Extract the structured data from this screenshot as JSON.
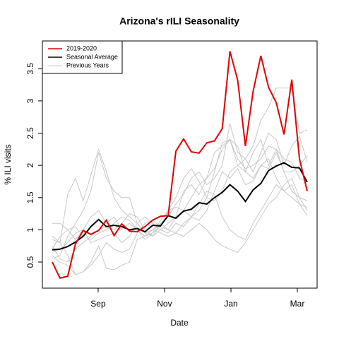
{
  "chart_data": {
    "type": "line",
    "title": "Arizona's rILI Seasonality",
    "x_label": "Date",
    "y_label": "% ILI visits",
    "x": [
      1,
      2,
      3,
      4,
      5,
      6,
      7,
      8,
      9,
      10,
      11,
      12,
      13,
      14,
      15,
      16,
      17,
      18,
      19,
      20,
      21,
      22,
      23,
      24,
      25,
      26,
      27,
      28,
      29,
      30,
      31,
      32,
      33,
      34
    ],
    "xlim": [
      -0.28,
      35.28
    ],
    "xticks": [
      {
        "value": 6.94,
        "label": "Sep"
      },
      {
        "value": 15.53,
        "label": "Nov"
      },
      {
        "value": 24.13,
        "label": "Jan"
      },
      {
        "value": 32.72,
        "label": "Mar"
      }
    ],
    "ylim": [
      0.095,
      3.93
    ],
    "yticks": [
      0.5,
      1,
      1.5,
      2,
      2.5,
      3,
      3.5
    ],
    "legend": "top-left",
    "series": [
      {
        "name": "2019-2020",
        "color": "#e00000",
        "values": [
          0.5,
          0.25,
          0.28,
          0.78,
          0.99,
          0.93,
          0.99,
          1.15,
          0.91,
          1.09,
          0.98,
          0.97,
          1.05,
          1.15,
          1.21,
          1.22,
          2.22,
          2.41,
          2.21,
          2.19,
          2.35,
          2.38,
          2.57,
          3.77,
          3.32,
          2.3,
          3.15,
          3.7,
          3.21,
          2.97,
          2.48,
          3.33,
          2.1,
          1.6
        ]
      },
      {
        "name": "Seasonal Average",
        "color": "#000000",
        "values": [
          0.69,
          0.7,
          0.74,
          0.81,
          0.9,
          1.05,
          1.16,
          1.05,
          1.07,
          1.05,
          1.0,
          1.02,
          0.97,
          1.07,
          1.06,
          1.22,
          1.18,
          1.29,
          1.32,
          1.42,
          1.4,
          1.5,
          1.58,
          1.7,
          1.6,
          1.44,
          1.62,
          1.72,
          1.92,
          1.99,
          2.04,
          1.97,
          1.96,
          1.74
        ]
      },
      {
        "name": "Previous Years",
        "color": "#c8c8c8",
        "lines": [
          [
            0.9,
            0.8,
            1.55,
            1.8,
            1.45,
            1.85,
            2.25,
            1.9,
            1.5,
            1.3,
            1.2,
            1.1,
            0.95,
            0.9,
            1.0,
            0.95,
            1.1,
            1.05,
            1.2,
            1.3,
            1.5,
            1.9,
            2.35,
            2.4,
            2.0,
            1.9,
            1.8,
            2.0,
            1.95,
            2.2,
            1.9,
            1.6,
            1.5,
            1.45
          ],
          [
            0.55,
            0.6,
            0.9,
            1.1,
            1.3,
            1.6,
            2.2,
            1.8,
            1.6,
            1.5,
            1.5,
            1.1,
            0.95,
            1.0,
            1.1,
            1.2,
            1.4,
            1.55,
            1.8,
            1.9,
            1.7,
            1.8,
            2.0,
            2.65,
            2.2,
            2.1,
            2.3,
            2.7,
            2.9,
            3.2,
            3.2,
            3.2,
            2.5,
            2.55
          ],
          [
            0.75,
            0.55,
            0.5,
            0.7,
            0.8,
            0.9,
            1.0,
            1.05,
            1.0,
            1.1,
            1.25,
            1.2,
            1.0,
            0.9,
            1.1,
            1.0,
            1.2,
            1.6,
            1.7,
            1.55,
            1.8,
            2.2,
            2.3,
            2.4,
            2.1,
            1.95,
            2.0,
            2.1,
            2.3,
            2.25,
            1.9,
            1.9,
            2.0,
            2.15
          ],
          [
            0.6,
            0.5,
            0.45,
            0.3,
            0.35,
            0.5,
            0.75,
            0.4,
            0.38,
            0.45,
            0.5,
            0.85,
            0.9,
            1.0,
            0.95,
            0.9,
            0.95,
            1.1,
            1.2,
            1.15,
            1.3,
            1.6,
            1.9,
            1.8,
            1.95,
            1.7,
            1.75,
            2.0,
            2.1,
            1.8,
            1.6,
            1.7,
            1.4,
            1.35
          ],
          [
            0.85,
            0.8,
            0.6,
            0.3,
            0.35,
            0.45,
            0.6,
            0.8,
            0.7,
            0.65,
            0.7,
            0.95,
            1.1,
            1.15,
            1.05,
            1.0,
            0.95,
            0.9,
            1.0,
            1.1,
            1.0,
            0.85,
            0.75,
            0.7,
            0.65,
            0.8,
            1.0,
            1.2,
            1.4,
            1.5,
            1.7,
            1.8,
            1.5,
            1.3
          ],
          [
            0.7,
            0.9,
            1.0,
            0.85,
            1.0,
            1.2,
            1.3,
            1.1,
            1.2,
            1.0,
            1.1,
            1.0,
            0.85,
            0.95,
            1.15,
            1.3,
            1.5,
            1.8,
            1.95,
            1.75,
            1.5,
            1.45,
            1.6,
            1.9,
            2.0,
            2.1,
            1.9,
            2.2,
            2.5,
            2.4,
            2.0,
            2.3,
            2.45,
            2.05
          ],
          [
            1.1,
            1.1,
            1.0,
            1.05,
            0.9,
            0.85,
            0.95,
            1.0,
            1.1,
            1.2,
            1.15,
            1.0,
            0.9,
            0.95,
            1.05,
            1.3,
            1.35,
            1.3,
            1.2,
            1.4,
            1.6,
            1.55,
            1.2,
            1.0,
            0.9,
            0.85,
            1.1,
            1.3,
            1.5,
            1.7,
            1.6,
            1.5,
            1.4,
            1.22
          ],
          [
            0.65,
            0.7,
            0.8,
            0.95,
            1.0,
            0.8,
            0.85,
            0.9,
            0.95,
            0.8,
            0.9,
            1.1,
            1.2,
            1.1,
            1.0,
            1.1,
            1.2,
            1.3,
            1.5,
            1.7,
            1.8,
            1.95,
            2.25,
            2.4,
            2.3,
            1.9,
            2.2,
            2.4,
            2.0,
            2.25,
            2.1,
            2.05,
            1.8,
            1.75
          ]
        ]
      }
    ]
  }
}
